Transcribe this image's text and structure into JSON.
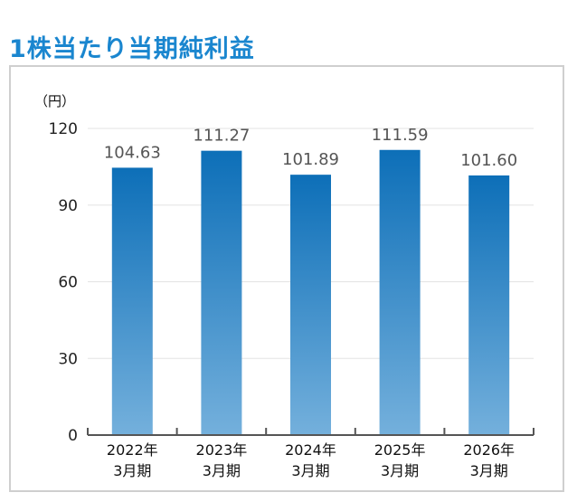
{
  "chart_data": {
    "type": "bar",
    "title": "1株当たり当期純利益",
    "unit": "（円）",
    "categories": [
      [
        "2022年",
        "3月期"
      ],
      [
        "2023年",
        "3月期"
      ],
      [
        "2024年",
        "3月期"
      ],
      [
        "2025年",
        "3月期"
      ],
      [
        "2026年",
        "3月期"
      ]
    ],
    "values": [
      104.63,
      111.27,
      101.89,
      111.59,
      101.6
    ],
    "value_labels": [
      "104.63",
      "111.27",
      "101.89",
      "111.59",
      "101.60"
    ],
    "yticks": [
      "0",
      "30",
      "60",
      "90",
      "120"
    ],
    "ylim": [
      0,
      120
    ],
    "grid": true,
    "colors": {
      "bar_top": "#0d6fb8",
      "bar_bottom": "#74b0dc",
      "title": "#1a86cf"
    }
  }
}
